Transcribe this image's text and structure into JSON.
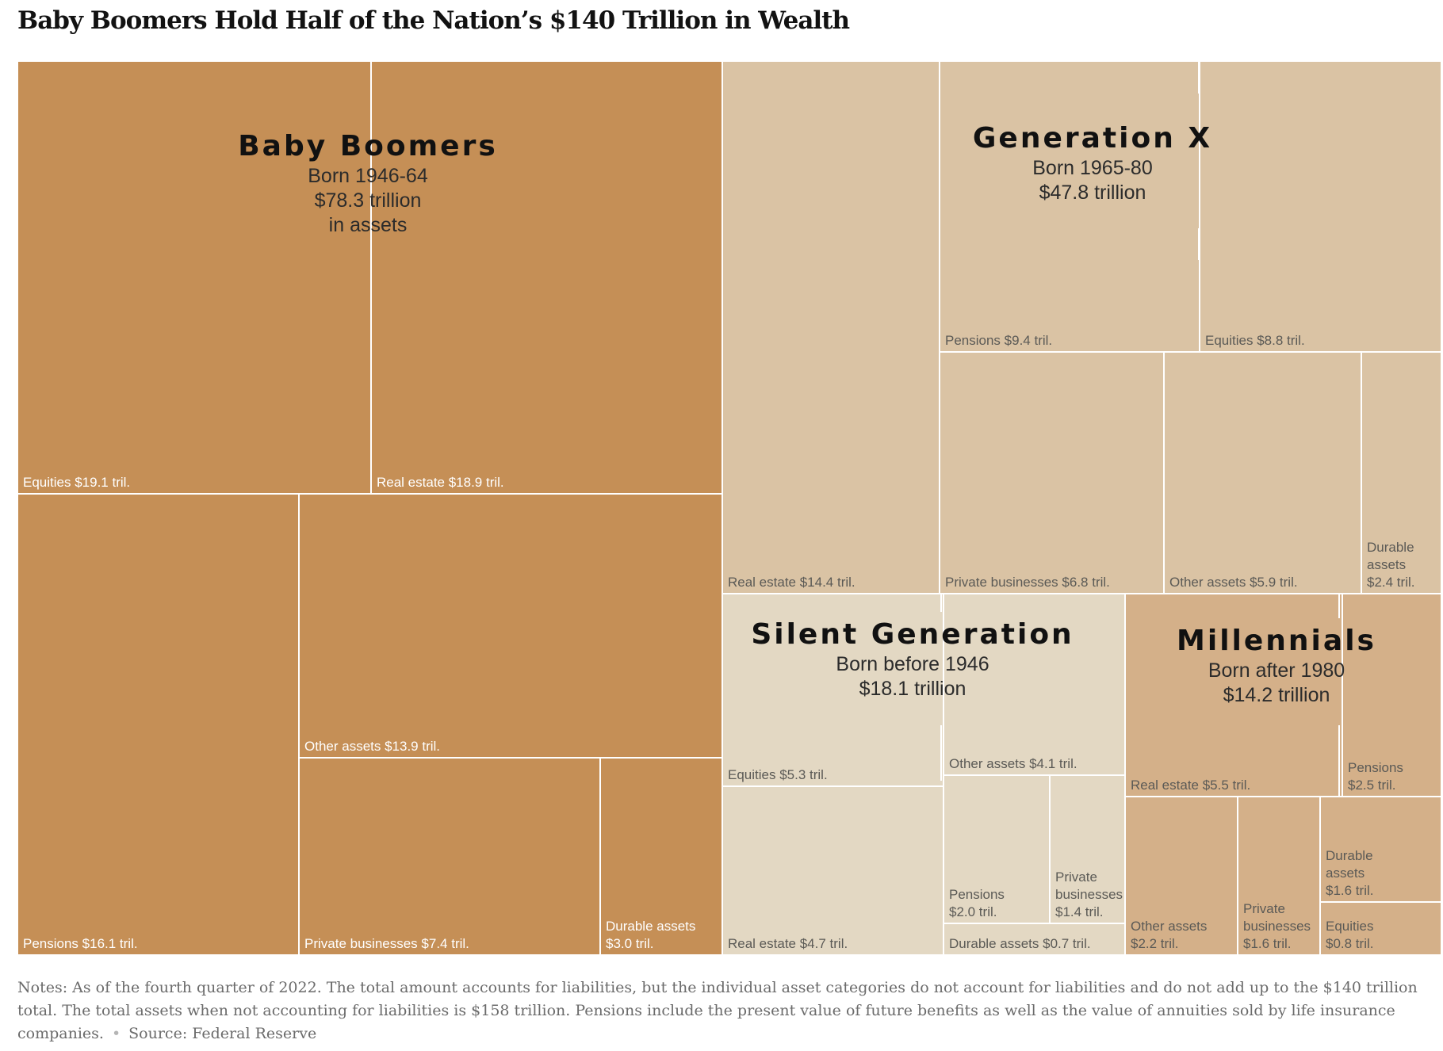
{
  "title": "Baby Boomers Hold Half of the Nation’s $140 Trillion in Wealth",
  "chart_data": {
    "type": "treemap",
    "title": "Baby Boomers Hold Half of the Nation’s $140 Trillion in Wealth",
    "unit": "trillion dollars",
    "groups": [
      {
        "name": "Baby Boomers",
        "born": "Born 1946-64",
        "total_label": "$78.3 trillion",
        "extra_label": "in assets",
        "total": 78.3,
        "color": "#c58f56",
        "items": [
          {
            "label": "Equities $19.1 tril.",
            "category": "Equities",
            "value": 19.1
          },
          {
            "label": "Real estate $18.9 tril.",
            "category": "Real estate",
            "value": 18.9
          },
          {
            "label": "Pensions $16.1 tril.",
            "category": "Pensions",
            "value": 16.1
          },
          {
            "label": "Other assets $13.9 tril.",
            "category": "Other assets",
            "value": 13.9
          },
          {
            "label": "Private businesses $7.4 tril.",
            "category": "Private businesses",
            "value": 7.4
          },
          {
            "label": "Durable assets $3.0 tril.",
            "category": "Durable assets",
            "value": 3.0
          }
        ]
      },
      {
        "name": "Generation X",
        "born": "Born 1965-80",
        "total_label": "$47.8 trillion",
        "total": 47.8,
        "color": "#dac3a4",
        "items": [
          {
            "label": "Real estate $14.4 tril.",
            "category": "Real estate",
            "value": 14.4
          },
          {
            "label": "Pensions $9.4 tril.",
            "category": "Pensions",
            "value": 9.4
          },
          {
            "label": "Equities $8.8 tril.",
            "category": "Equities",
            "value": 8.8
          },
          {
            "label": "Private businesses $6.8 tril.",
            "category": "Private businesses",
            "value": 6.8
          },
          {
            "label": "Other assets $5.9 tril.",
            "category": "Other assets",
            "value": 5.9
          },
          {
            "label": "Durable assets $2.4 tril.",
            "category": "Durable assets",
            "value": 2.4
          }
        ]
      },
      {
        "name": "Silent Generation",
        "born": "Born before 1946",
        "total_label": "$18.1 trillion",
        "total": 18.1,
        "color": "#e3d8c3",
        "items": [
          {
            "label": "Equities $5.3 tril.",
            "category": "Equities",
            "value": 5.3
          },
          {
            "label": "Real estate $4.7 tril.",
            "category": "Real estate",
            "value": 4.7
          },
          {
            "label": "Other assets $4.1 tril.",
            "category": "Other assets",
            "value": 4.1
          },
          {
            "label": "Pensions $2.0 tril.",
            "category": "Pensions",
            "value": 2.0
          },
          {
            "label": "Private businesses $1.4 tril.",
            "category": "Private businesses",
            "value": 1.4
          },
          {
            "label": "Durable assets $0.7 tril.",
            "category": "Durable assets",
            "value": 0.7
          }
        ]
      },
      {
        "name": "Millennials",
        "born": "Born after 1980",
        "total_label": "$14.2 trillion",
        "total": 14.2,
        "color": "#d4b089",
        "items": [
          {
            "label": "Real estate $5.5 tril.",
            "category": "Real estate",
            "value": 5.5
          },
          {
            "label": "Pensions $2.5 tril.",
            "category": "Pensions",
            "value": 2.5
          },
          {
            "label": "Other assets $2.2 tril.",
            "category": "Other assets",
            "value": 2.2
          },
          {
            "label": "Private businesses $1.6 tril.",
            "category": "Private businesses",
            "value": 1.6
          },
          {
            "label": "Durable assets $1.6 tril.",
            "category": "Durable assets",
            "value": 1.6
          },
          {
            "label": "Equities $0.8 tril.",
            "category": "Equities",
            "value": 0.8
          }
        ]
      }
    ]
  },
  "notes": {
    "text": "Notes: As of the fourth quarter of 2022. The total amount accounts for liabilities, but the individual asset categories do not account for liabilities and do not add up to the $140 trillion total. The total assets when not accounting for liabilities is $158 trillion. Pensions include the present value of future benefits as well as the value of annuities sold by life insurance companies.",
    "source": "Source: Federal Reserve"
  }
}
